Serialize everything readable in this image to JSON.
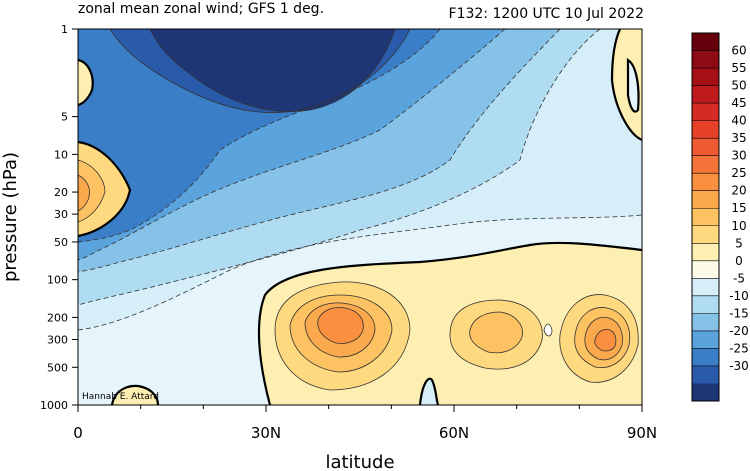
{
  "header": {
    "title_left": "zonal mean zonal wind; GFS 1 deg.",
    "title_right": "F132: 1200 UTC 10 Jul 2022"
  },
  "watermark": "Hannah E. Attard",
  "chart_data": {
    "type": "heatmap",
    "title": "zonal mean zonal wind; GFS 1 deg.",
    "subtitle": "F132: 1200 UTC 10 Jul 2022",
    "xlabel": "latitude",
    "ylabel": "pressure (hPa)",
    "x_ticks": [
      {
        "value": 0,
        "label": "0"
      },
      {
        "value": 30,
        "label": "30N"
      },
      {
        "value": 60,
        "label": "60N"
      },
      {
        "value": 90,
        "label": "90N"
      }
    ],
    "y_ticks": [
      1,
      5,
      10,
      20,
      30,
      50,
      100,
      200,
      300,
      500,
      1000
    ],
    "xlim": [
      0,
      90
    ],
    "ylim": [
      1000,
      1
    ],
    "y_scale": "log",
    "colorbar": {
      "labels": [
        "60",
        "55",
        "50",
        "45",
        "40",
        "35",
        "30",
        "25",
        "20",
        "15",
        "10",
        "5",
        "0",
        "-5",
        "-10",
        "-15",
        "-20",
        "-25",
        "-30"
      ],
      "colors": [
        "#67000d",
        "#8e0a14",
        "#a50f15",
        "#bf1a1c",
        "#d62a24",
        "#e6422a",
        "#ef5a32",
        "#f5743a",
        "#f98f3f",
        "#fba94d",
        "#fdc262",
        "#fed97f",
        "#fdeeb1",
        "#fdfce8",
        "#d5eef8",
        "#b0dcf1",
        "#86c2e8",
        "#5ba3dc",
        "#3a7ec8",
        "#2a5aaa",
        "#1e3675"
      ],
      "placement": "right"
    },
    "contour_lines": {
      "negative": "dashed",
      "zero": "thick solid",
      "positive": "solid"
    }
  }
}
